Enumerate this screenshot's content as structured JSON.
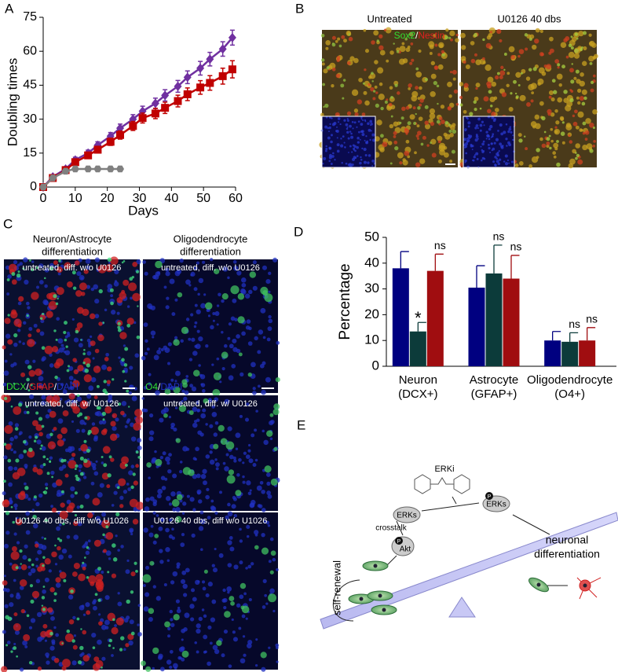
{
  "chart_data": [
    {
      "type": "line",
      "ylabel": "Doubling times",
      "xlabel": "Days",
      "xlim": [
        0,
        60
      ],
      "xticks": [
        0,
        10,
        20,
        30,
        40,
        50,
        60
      ],
      "ylim": [
        0,
        75
      ],
      "yticks": [
        0,
        15,
        30,
        45,
        60,
        75
      ],
      "series": [
        {
          "color": "#7030a0",
          "marker": "diamond",
          "x": [
            0,
            3,
            7,
            10,
            14,
            17,
            21,
            24,
            28,
            31,
            35,
            38,
            42,
            45,
            49,
            52,
            56,
            59
          ],
          "values": [
            0,
            4.5,
            8,
            12,
            15,
            18.5,
            22.5,
            26,
            30,
            33.5,
            37,
            40.5,
            44.5,
            48.5,
            52.5,
            56.5,
            61,
            66
          ],
          "errors": [
            0,
            0.8,
            1,
            1.2,
            1.3,
            1.5,
            1.6,
            1.8,
            2,
            2.2,
            2.3,
            2.5,
            2.6,
            2.8,
            3,
            3,
            3.2,
            3.3
          ]
        },
        {
          "color": "#c00000",
          "marker": "square",
          "x": [
            0,
            3,
            7,
            10,
            14,
            17,
            21,
            24,
            28,
            31,
            35,
            38,
            42,
            45,
            49,
            52,
            56,
            59
          ],
          "values": [
            0,
            4,
            7.5,
            11,
            14,
            16.5,
            20,
            23,
            27,
            30.5,
            32.5,
            35,
            38,
            41,
            44,
            46,
            49,
            52
          ],
          "errors": [
            0,
            0.8,
            1,
            1.2,
            1.3,
            1.5,
            1.6,
            1.8,
            2,
            2.2,
            2.3,
            2.5,
            2.6,
            2.8,
            3,
            3.2,
            3.5,
            3.8
          ]
        },
        {
          "color": "#808080",
          "marker": "hexagon",
          "x": [
            0,
            3,
            7,
            10,
            14,
            17,
            21,
            24
          ],
          "values": [
            0,
            4,
            7,
            8,
            8,
            8,
            8,
            8
          ]
        }
      ]
    },
    {
      "type": "bar",
      "ylabel": "Percentage",
      "categories": [
        [
          "Neuron",
          "(DCX+)"
        ],
        [
          "Astrocyte",
          "(GFAP+)"
        ],
        [
          "Oligodendrocyte",
          "(O4+)"
        ]
      ],
      "ylim": [
        0,
        50
      ],
      "yticks": [
        0,
        10,
        20,
        30,
        40,
        50
      ],
      "series": [
        {
          "color": "#000080",
          "values": [
            38,
            30.5,
            10
          ],
          "errors": [
            6.5,
            8.5,
            3.5
          ]
        },
        {
          "color": "#0c3b3a",
          "values": [
            13.5,
            36,
            9.5
          ],
          "errors": [
            3.5,
            11,
            3.5
          ],
          "labels": [
            "*",
            "ns",
            "ns"
          ]
        },
        {
          "color": "#a00d10",
          "values": [
            37,
            34,
            10
          ],
          "errors": [
            6.5,
            9,
            5
          ],
          "labels": [
            "ns",
            "ns",
            "ns"
          ]
        }
      ]
    }
  ],
  "panel_labels": [
    "A",
    "B",
    "C",
    "D",
    "E"
  ],
  "panel_b": {
    "titles": [
      "Untreated",
      "U0126 40 dbs"
    ],
    "stain": [
      "Sox2",
      "/",
      "Nestin"
    ]
  },
  "panel_c": {
    "headers": [
      [
        "Neuron/Astrocyte",
        "differentiation"
      ],
      [
        "Oligodendrocyte",
        "differentiation"
      ]
    ],
    "captions": [
      [
        "untreated, diff. w/o U0126",
        "untreated, diff. w/o U0126"
      ],
      [
        "untreated, diff. w/ U0126",
        "untreated, diff. w/ U0126"
      ],
      [
        "U0126 40 dbs, diff w/o U1026",
        "U0126 40 dbs, diff w/o U1026"
      ]
    ],
    "stains": [
      [
        "DCX",
        "/",
        "GFAP",
        "/",
        "DAPI"
      ],
      [
        "O4",
        "/",
        "DAPI"
      ]
    ]
  },
  "panel_e": {
    "inhibitor": "ERKi",
    "erks": [
      "ERKs",
      "ERKs"
    ],
    "akt": "Akt",
    "phospho": [
      "P",
      "P"
    ],
    "crosstalk": "crosstalk",
    "outcome": [
      "neuronal",
      "differentiation"
    ],
    "self_renewal": "self-renewal"
  }
}
